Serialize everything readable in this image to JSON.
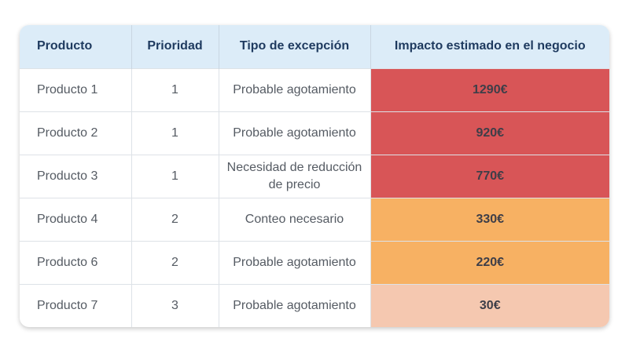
{
  "table": {
    "headers": [
      "Producto",
      "Prioridad",
      "Tipo de excepción",
      "Impacto estimado en el negocio"
    ],
    "rows": [
      {
        "producto": "Producto 1",
        "prioridad": "1",
        "tipo": "Probable agotamiento",
        "impacto": "1290€",
        "color": "#d85557"
      },
      {
        "producto": "Producto 2",
        "prioridad": "1",
        "tipo": "Probable agotamiento",
        "impacto": "920€",
        "color": "#d85557"
      },
      {
        "producto": "Producto 3",
        "prioridad": "1",
        "tipo": "Necesidad de reducción de precio",
        "impacto": "770€",
        "color": "#d85557"
      },
      {
        "producto": "Producto 4",
        "prioridad": "2",
        "tipo": "Conteo necesario",
        "impacto": "330€",
        "color": "#f7b163"
      },
      {
        "producto": "Producto 6",
        "prioridad": "2",
        "tipo": "Probable agotamiento",
        "impacto": "220€",
        "color": "#f7b163"
      },
      {
        "producto": "Producto 7",
        "prioridad": "3",
        "tipo": "Probable agotamiento",
        "impacto": "30€",
        "color": "#f5c8b0"
      }
    ]
  }
}
